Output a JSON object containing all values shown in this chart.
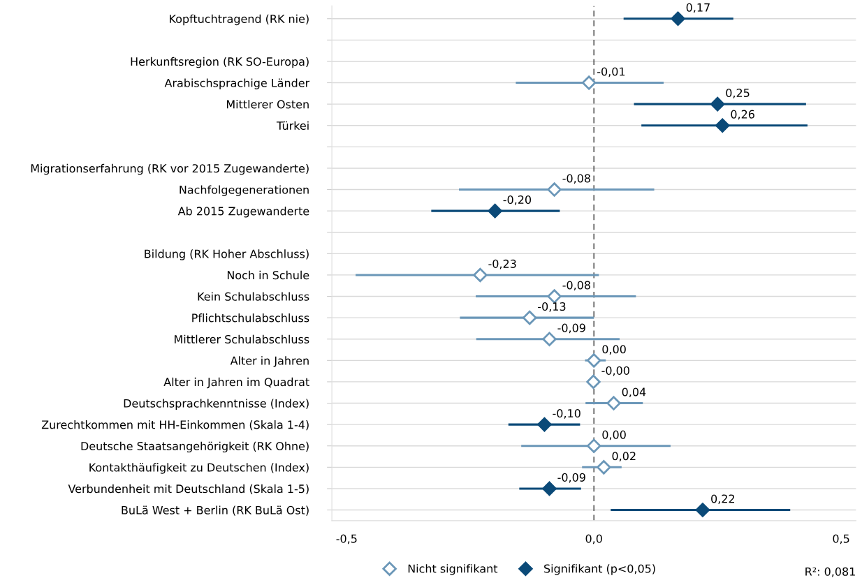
{
  "chart_data": {
    "type": "scatter",
    "orientation": "horizontal",
    "categories": [
      "Kopftuchtragend (RK nie)",
      null,
      "Herkunftsregion (RK SO-Europa)",
      "Arabischsprachige Länder",
      "Mittlerer Osten",
      "Türkei",
      null,
      "Migrationserfahrung (RK vor 2015 Zugewanderte)",
      "Nachfolgegenerationen",
      "Ab 2015 Zugewanderte",
      null,
      "Bildung (RK Hoher Abschluss)",
      "Noch in Schule",
      "Kein Schulabschluss",
      "Pflichtschulabschluss",
      "Mittlerer Schulabschluss",
      "Alter in Jahren",
      "Alter in Jahren im Quadrat",
      "Deutschsprachkenntnisse (Index)",
      "Zurechtkommen mit HH-Einkommen (Skala 1-4)",
      "Deutsche Staatsangehörigkeit (RK Ohne)",
      "Kontakthäufigkeit zu Deutschen (Index)",
      "Verbundenheit mit Deutschland (Skala 1-5)",
      "BuLä West + Berlin (RK BuLä Ost)"
    ],
    "series": [
      {
        "name": "Nicht signifikant",
        "color": "#6b97b8",
        "marker": "diamond",
        "values": [
          null,
          null,
          null,
          -0.01,
          null,
          null,
          null,
          null,
          -0.08,
          null,
          null,
          null,
          -0.23,
          -0.08,
          -0.13,
          -0.09,
          0.0,
          -0.001,
          0.04,
          null,
          0.0,
          0.02,
          null,
          null
        ],
        "errors": [
          null,
          null,
          null,
          [
            -0.158,
            0.141
          ],
          null,
          null,
          null,
          null,
          [
            -0.273,
            0.122
          ],
          null,
          null,
          null,
          [
            -0.482,
            0.01
          ],
          [
            -0.239,
            0.085
          ],
          [
            -0.271,
            0.0
          ],
          [
            -0.238,
            0.052
          ],
          [
            -0.018,
            0.024
          ],
          null,
          [
            -0.017,
            0.099
          ],
          null,
          [
            -0.147,
            0.155
          ],
          [
            -0.024,
            0.056
          ],
          null,
          null
        ],
        "value_labels": [
          null,
          null,
          null,
          "-0,01",
          null,
          null,
          null,
          null,
          "-0,08",
          null,
          null,
          null,
          "-0,23",
          "-0,08",
          "-0,13",
          "-0,09",
          "0,00",
          "-0,00",
          "0,04",
          null,
          "0,00",
          "0,02",
          null,
          null
        ]
      },
      {
        "name": "Signifikant (p<0,05)",
        "color": "#0b4a78",
        "marker": "diamond",
        "values": [
          0.17,
          null,
          null,
          null,
          0.25,
          0.26,
          null,
          null,
          null,
          -0.2,
          null,
          null,
          null,
          null,
          null,
          null,
          null,
          null,
          null,
          -0.1,
          null,
          null,
          -0.09,
          0.22
        ],
        "errors": [
          [
            0.06,
            0.282
          ],
          null,
          null,
          null,
          [
            0.081,
            0.429
          ],
          [
            0.096,
            0.432
          ],
          null,
          null,
          null,
          [
            -0.329,
            -0.069
          ],
          null,
          null,
          null,
          null,
          null,
          null,
          null,
          null,
          null,
          [
            -0.173,
            -0.028
          ],
          null,
          null,
          [
            -0.151,
            -0.026
          ],
          [
            0.034,
            0.397
          ]
        ],
        "value_labels": [
          "0,17",
          null,
          null,
          null,
          "0,25",
          "0,26",
          null,
          null,
          null,
          "-0,20",
          null,
          null,
          null,
          null,
          null,
          null,
          null,
          null,
          null,
          "-0,10",
          null,
          null,
          "-0,09",
          "0,22"
        ]
      }
    ],
    "xlim": [
      -0.53,
      0.53
    ],
    "xticks": [
      {
        "value": -0.5,
        "label": "-0,5"
      },
      {
        "value": 0.0,
        "label": "0,0"
      },
      {
        "value": 0.5,
        "label": "0,5"
      }
    ],
    "ref_lines": [
      {
        "axis": "x",
        "value": 0,
        "color": "#333333",
        "line_style": "dashed"
      }
    ],
    "grid": "y",
    "legend": "bottom",
    "annotations": [
      "R²: 0,081"
    ]
  }
}
